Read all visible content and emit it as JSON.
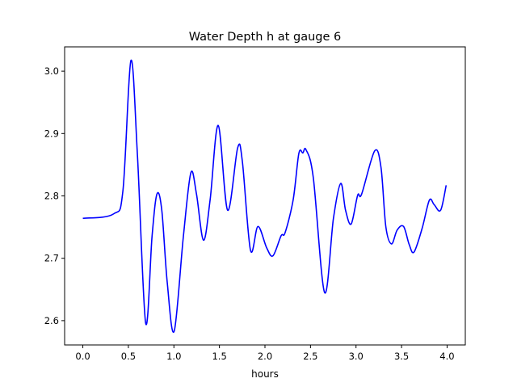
{
  "chart_data": {
    "type": "line",
    "title": "Water Depth h at gauge 6",
    "xlabel": "hours",
    "ylabel": "",
    "xlim": [
      -0.2,
      4.2
    ],
    "ylim": [
      2.561,
      3.039
    ],
    "xticks": [
      0.0,
      0.5,
      1.0,
      1.5,
      2.0,
      2.5,
      3.0,
      3.5,
      4.0
    ],
    "xtick_labels": [
      "0.0",
      "0.5",
      "1.0",
      "1.5",
      "2.0",
      "2.5",
      "3.0",
      "3.5",
      "4.0"
    ],
    "yticks": [
      2.6,
      2.7,
      2.8,
      2.9,
      3.0
    ],
    "ytick_labels": [
      "2.6",
      "2.7",
      "2.8",
      "2.9",
      "3.0"
    ],
    "grid": false,
    "series": [
      {
        "name": "h",
        "color": "#0000ff",
        "x": [
          0.0,
          0.336,
          0.44,
          0.528,
          0.6,
          0.69,
          0.76,
          0.814,
          0.867,
          0.927,
          1.003,
          1.104,
          1.186,
          1.248,
          1.325,
          1.398,
          1.487,
          1.59,
          1.7,
          1.752,
          1.841,
          1.923,
          2.018,
          2.088,
          2.177,
          2.221,
          2.31,
          2.372,
          2.416,
          2.451,
          2.531,
          2.655,
          2.752,
          2.832,
          2.885,
          2.947,
          3.018,
          3.062,
          3.204,
          3.274,
          3.327,
          3.389,
          3.451,
          3.522,
          3.584,
          3.637,
          3.726,
          3.805,
          3.858,
          3.929,
          3.99
        ],
        "y": [
          2.764,
          2.771,
          2.808,
          3.017,
          2.864,
          2.596,
          2.735,
          2.803,
          2.777,
          2.661,
          2.583,
          2.735,
          2.837,
          2.803,
          2.729,
          2.794,
          2.913,
          2.777,
          2.877,
          2.855,
          2.713,
          2.751,
          2.717,
          2.704,
          2.736,
          2.741,
          2.794,
          2.868,
          2.869,
          2.874,
          2.829,
          2.645,
          2.764,
          2.82,
          2.777,
          2.755,
          2.801,
          2.803,
          2.872,
          2.846,
          2.751,
          2.723,
          2.745,
          2.751,
          2.722,
          2.71,
          2.748,
          2.793,
          2.786,
          2.777,
          2.817
        ]
      }
    ]
  }
}
